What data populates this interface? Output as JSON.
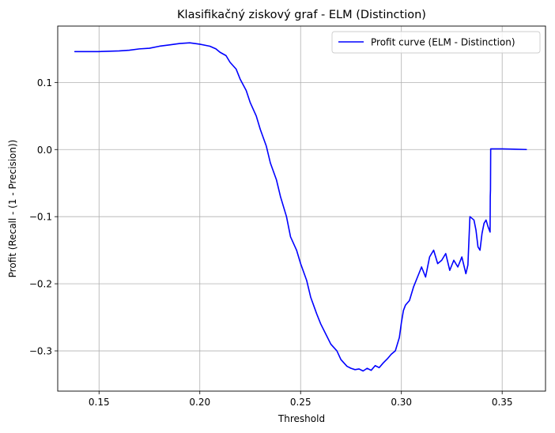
{
  "chart_data": {
    "type": "line",
    "title": "Klasifikačný ziskový graf - ELM (Distinction)",
    "xlabel": "Threshold",
    "ylabel": "Profit (Recall - (1 - Precision))",
    "xlim": [
      0.1295,
      0.3715
    ],
    "ylim": [
      -0.36,
      0.184
    ],
    "xticks": [
      0.15,
      0.2,
      0.25,
      0.3,
      0.35
    ],
    "xtick_labels": [
      "0.15",
      "0.20",
      "0.25",
      "0.30",
      "0.35"
    ],
    "yticks": [
      -0.3,
      -0.2,
      -0.1,
      0.0,
      0.1
    ],
    "ytick_labels": [
      "−0.3",
      "−0.2",
      "−0.1",
      "0.0",
      "0.1"
    ],
    "grid": true,
    "legend_position": "top-right",
    "series": [
      {
        "name": "Profit curve (ELM - Distinction)",
        "color": "#0000ff",
        "x": [
          0.138,
          0.15,
          0.16,
          0.165,
          0.17,
          0.175,
          0.18,
          0.185,
          0.19,
          0.195,
          0.2,
          0.205,
          0.208,
          0.21,
          0.213,
          0.215,
          0.218,
          0.22,
          0.223,
          0.225,
          0.228,
          0.23,
          0.233,
          0.235,
          0.238,
          0.24,
          0.243,
          0.245,
          0.248,
          0.25,
          0.253,
          0.255,
          0.258,
          0.26,
          0.263,
          0.265,
          0.268,
          0.27,
          0.273,
          0.275,
          0.277,
          0.279,
          0.281,
          0.283,
          0.285,
          0.287,
          0.289,
          0.291,
          0.293,
          0.295,
          0.297,
          0.299,
          0.3,
          0.301,
          0.302,
          0.304,
          0.306,
          0.308,
          0.31,
          0.312,
          0.314,
          0.316,
          0.318,
          0.32,
          0.322,
          0.324,
          0.326,
          0.328,
          0.33,
          0.332,
          0.333,
          0.334,
          0.336,
          0.337,
          0.338,
          0.339,
          0.34,
          0.341,
          0.342,
          0.343,
          0.344,
          0.3441,
          0.3442,
          0.3443,
          0.35,
          0.356,
          0.362
        ],
        "y": [
          0.146,
          0.146,
          0.147,
          0.148,
          0.15,
          0.151,
          0.154,
          0.156,
          0.158,
          0.159,
          0.157,
          0.154,
          0.15,
          0.145,
          0.14,
          0.13,
          0.12,
          0.105,
          0.088,
          0.07,
          0.05,
          0.03,
          0.005,
          -0.02,
          -0.045,
          -0.07,
          -0.1,
          -0.13,
          -0.15,
          -0.17,
          -0.195,
          -0.22,
          -0.245,
          -0.26,
          -0.278,
          -0.29,
          -0.3,
          -0.313,
          -0.323,
          -0.326,
          -0.328,
          -0.327,
          -0.33,
          -0.326,
          -0.329,
          -0.322,
          -0.325,
          -0.318,
          -0.312,
          -0.305,
          -0.3,
          -0.28,
          -0.258,
          -0.24,
          -0.232,
          -0.225,
          -0.205,
          -0.19,
          -0.175,
          -0.19,
          -0.16,
          -0.15,
          -0.17,
          -0.165,
          -0.155,
          -0.18,
          -0.165,
          -0.175,
          -0.16,
          -0.185,
          -0.172,
          -0.1,
          -0.105,
          -0.12,
          -0.145,
          -0.15,
          -0.125,
          -0.11,
          -0.105,
          -0.115,
          -0.123,
          -0.07,
          -0.06,
          0.001,
          0.001,
          0.0005,
          0.0
        ]
      }
    ]
  }
}
